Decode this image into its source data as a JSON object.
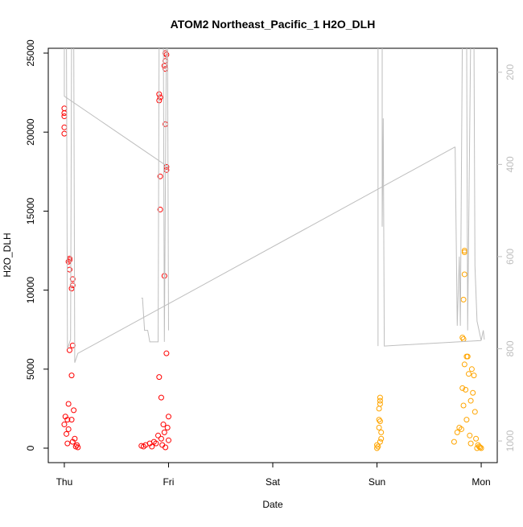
{
  "chart_data": {
    "type": "scatter",
    "title": "ATOM2 Northeast_Pacific_1 H2O_DLH",
    "xlabel": "Date",
    "ylabel": "H2O_DLH",
    "xlim": [
      -0.154,
      4.154
    ],
    "xticks": [
      {
        "value": 0,
        "label": "Thu"
      },
      {
        "value": 1,
        "label": "Fri"
      },
      {
        "value": 2,
        "label": "Sat"
      },
      {
        "value": 3,
        "label": "Sun"
      },
      {
        "value": 4,
        "label": "Mon"
      }
    ],
    "ylim": [
      -916,
      25305
    ],
    "yticks": [
      0,
      5000,
      10000,
      15000,
      20000,
      25000
    ],
    "y2lim": [
      1047,
      148
    ],
    "y2ticks": [
      200,
      400,
      600,
      800,
      1000
    ],
    "series": [
      {
        "color": "#ff0000",
        "x": [
          0.0,
          0.0,
          0.0,
          0.0,
          0.0,
          0.05,
          0.05,
          0.04,
          0.05,
          0.08,
          0.08,
          0.07,
          0.08,
          0.05,
          0.07,
          0.04,
          0.09,
          0.01,
          0.03,
          0.07,
          0.0,
          0.04,
          0.02,
          0.1,
          0.08,
          0.03,
          0.12,
          0.11,
          0.13,
          0.97,
          0.98,
          0.97,
          0.96,
          0.97,
          0.91,
          0.92,
          0.91,
          0.97,
          0.98,
          0.98,
          0.92,
          0.92,
          0.96,
          0.98,
          0.91,
          0.93,
          1.0,
          0.95,
          0.99,
          0.96,
          0.9,
          0.93,
          1.0,
          0.86,
          0.82,
          0.88,
          0.78,
          0.94,
          0.74,
          0.76,
          0.84,
          0.97
        ],
        "values": [
          21500,
          21200,
          21000,
          20300,
          19900,
          12000,
          11900,
          11800,
          11300,
          10700,
          10300,
          10100,
          6500,
          6200,
          4600,
          2800,
          2400,
          2000,
          1800,
          1800,
          1500,
          1200,
          900,
          600,
          400,
          300,
          200,
          100,
          50,
          25000,
          24900,
          24500,
          24200,
          24000,
          22400,
          22200,
          22000,
          20500,
          17800,
          17600,
          17200,
          15100,
          10900,
          6000,
          4500,
          3200,
          2000,
          1500,
          1300,
          1000,
          800,
          600,
          500,
          400,
          300,
          300,
          200,
          200,
          150,
          100,
          100,
          50
        ]
      },
      {
        "color": "#ffa500",
        "x": [
          3.03,
          3.03,
          3.03,
          3.02,
          3.02,
          3.03,
          3.02,
          3.04,
          3.04,
          3.03,
          3.0,
          3.01,
          3.0,
          3.84,
          3.84,
          3.84,
          3.83,
          3.82,
          3.83,
          3.87,
          3.86,
          3.84,
          3.91,
          3.88,
          3.93,
          3.82,
          3.85,
          3.92,
          3.9,
          3.83,
          3.94,
          3.86,
          3.79,
          3.81,
          3.77,
          3.89,
          3.95,
          3.74,
          3.9,
          3.97,
          3.98,
          3.99,
          4.0,
          3.96
        ],
        "values": [
          3200,
          3000,
          2800,
          2500,
          1800,
          1700,
          1300,
          1000,
          600,
          400,
          200,
          100,
          0,
          12500,
          12400,
          11000,
          9400,
          7000,
          6900,
          5800,
          5800,
          5300,
          5000,
          4700,
          4600,
          3800,
          3700,
          3500,
          3000,
          2700,
          2300,
          1800,
          1300,
          1200,
          1000,
          800,
          600,
          400,
          300,
          200,
          100,
          50,
          0,
          0
        ]
      },
      {
        "type": "line",
        "axis": "y2",
        "color": "#bebebe",
        "x": [
          0.0,
          0.0,
          1.0,
          null,
          0.02,
          0.03,
          0.06,
          0.07,
          0.09,
          0.1,
          0.13,
          3.75,
          null,
          0.74,
          0.75,
          0.77,
          0.8,
          0.82,
          0.9,
          0.91,
          0.95,
          0.96,
          0.98,
          0.99,
          1.0,
          null,
          3.01,
          3.01,
          null,
          3.05,
          3.05,
          3.06,
          3.07,
          4.0,
          null,
          3.75,
          3.77,
          3.79,
          3.8,
          3.82,
          3.86,
          3.87,
          3.9,
          3.93,
          3.94,
          3.96,
          4.0,
          4.02,
          4.03
        ],
        "values": [
          100,
          252,
          406,
          null,
          100,
          800,
          780,
          100,
          100,
          830,
          810,
          362,
          null,
          690,
          690,
          760,
          760,
          785,
          785,
          100,
          100,
          785,
          100,
          100,
          760,
          null,
          794,
          100,
          null,
          100,
          535,
          300,
          794,
          782,
          null,
          362,
          750,
          600,
          750,
          100,
          100,
          760,
          100,
          100,
          620,
          740,
          782,
          760,
          780
        ]
      }
    ]
  }
}
